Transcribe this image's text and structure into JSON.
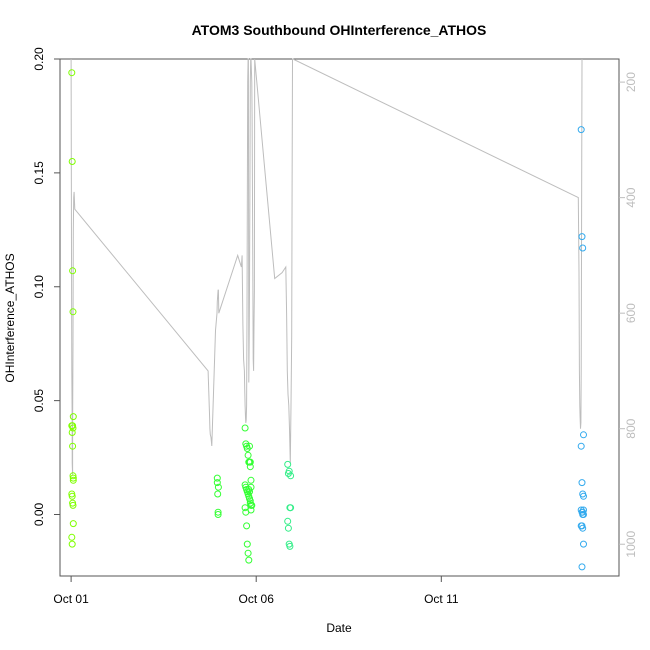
{
  "chart_data": {
    "type": "scatter",
    "title": "ATOM3 Southbound OHInterference_ATHOS",
    "xlabel": "Date",
    "ylabel": "OHInterference_ATHOS",
    "x_ticks": [
      {
        "label": "Oct 01",
        "value": 0
      },
      {
        "label": "Oct 06",
        "value": 5
      },
      {
        "label": "Oct 11",
        "value": 10
      }
    ],
    "xlim": [
      -0.3,
      14.8
    ],
    "ylim": [
      -0.027,
      0.2
    ],
    "y_ticks": [
      "0.00",
      "0.05",
      "0.10",
      "0.15",
      "0.20"
    ],
    "y2_ticks": [
      "200",
      "400",
      "600",
      "800",
      "1000"
    ],
    "y2lim": [
      160,
      1055
    ],
    "y2_direction": "reversed",
    "grid": false,
    "colors": {
      "axis": "#555555",
      "line": "#bdbdbd",
      "y2_text": "#bdbdbd"
    },
    "series": [
      {
        "color": "#7fff00",
        "x": [
          0.02,
          0.03,
          0.04,
          0.05,
          0.06,
          0.02,
          0.03,
          0.04,
          0.05,
          0.06,
          0.02,
          0.03,
          0.04,
          0.05,
          0.06,
          0.02,
          0.03,
          0.04,
          0.05,
          0.06
        ],
        "y": [
          0.194,
          0.155,
          0.107,
          0.089,
          0.043,
          0.039,
          0.036,
          0.03,
          0.017,
          0.015,
          0.009,
          0.008,
          0.005,
          0.004,
          -0.004,
          -0.01,
          -0.013,
          0.039,
          0.038,
          0.016
        ]
      },
      {
        "color": "#33ff33",
        "x": [
          3.95,
          3.95,
          3.96,
          3.97,
          3.97,
          3.98,
          4.7,
          4.72,
          4.74,
          4.76,
          4.78,
          4.8,
          4.82,
          4.84,
          4.86,
          4.7,
          4.72,
          4.74,
          4.76,
          4.78,
          4.8,
          4.82,
          4.84,
          4.86,
          4.7,
          4.72,
          4.74,
          4.76,
          4.78,
          4.8,
          4.82,
          4.84,
          4.86,
          4.8,
          4.82,
          4.84,
          4.86,
          4.88
        ],
        "y": [
          0.016,
          0.014,
          0.009,
          0.001,
          0.0,
          0.012,
          0.038,
          0.031,
          0.03,
          0.029,
          0.026,
          0.023,
          0.023,
          0.021,
          0.015,
          0.013,
          0.012,
          0.011,
          0.01,
          0.009,
          0.008,
          0.007,
          0.005,
          0.004,
          0.003,
          0.001,
          -0.005,
          -0.013,
          -0.017,
          -0.02,
          0.03,
          0.023,
          0.012,
          0.011,
          0.01,
          0.006,
          0.002,
          0.004
        ]
      },
      {
        "color": "#33ee88",
        "x": [
          5.85,
          5.87,
          5.89,
          5.91,
          5.93,
          5.85,
          5.87,
          5.89,
          5.91,
          5.93
        ],
        "y": [
          0.022,
          0.018,
          0.019,
          0.003,
          0.003,
          -0.003,
          -0.006,
          -0.013,
          -0.014,
          0.017
        ]
      },
      {
        "color": "#33aaee",
        "x": [
          13.78,
          13.8,
          13.82,
          13.84,
          13.78,
          13.8,
          13.82,
          13.84,
          13.78,
          13.8,
          13.82,
          13.84,
          13.78,
          13.8,
          13.82,
          13.84,
          13.8,
          13.82,
          13.84
        ],
        "y": [
          0.169,
          0.122,
          0.117,
          0.035,
          0.03,
          0.014,
          0.009,
          0.008,
          0.002,
          0.001,
          0.0,
          0.002,
          -0.005,
          -0.005,
          -0.006,
          -0.013,
          -0.023,
          0.001,
          0.0
        ]
      }
    ],
    "altitude_line": {
      "name": "",
      "color": "#bdbdbd",
      "x": [
        0.0,
        0.01,
        0.02,
        0.03,
        0.03,
        0.04,
        0.04,
        0.05,
        0.06,
        0.07,
        0.08,
        0.1,
        3.7,
        3.74,
        3.75,
        3.76,
        3.78,
        3.8,
        3.9,
        3.94,
        3.95,
        3.96,
        3.97,
        3.98,
        3.99,
        4.5,
        4.55,
        4.6,
        4.62,
        4.64,
        4.66,
        4.68,
        4.69,
        4.7,
        4.71,
        4.72,
        4.73,
        4.74,
        4.75,
        4.76,
        4.77,
        4.78,
        4.79,
        4.8,
        4.81,
        4.82,
        4.83,
        4.84,
        4.85,
        4.86,
        4.87,
        4.88,
        4.89,
        4.9,
        4.91,
        4.92,
        4.93,
        4.94,
        4.95,
        4.96,
        5.5,
        5.7,
        5.8,
        5.82,
        5.84,
        5.86,
        5.88,
        5.9,
        5.92,
        5.94,
        5.96,
        5.97,
        5.98,
        5.99,
        13.7,
        13.72,
        13.73,
        13.74,
        13.75,
        13.76,
        13.77,
        13.78,
        13.8
      ],
      "y": [
        160,
        500,
        700,
        790,
        860,
        880,
        800,
        650,
        460,
        400,
        390,
        420,
        700,
        780,
        800,
        810,
        815,
        830,
        630,
        600,
        580,
        570,
        560,
        560,
        600,
        500,
        510,
        520,
        500,
        620,
        680,
        700,
        730,
        760,
        780,
        790,
        785,
        760,
        600,
        420,
        200,
        160,
        160,
        720,
        640,
        560,
        400,
        200,
        160,
        160,
        180,
        200,
        260,
        400,
        560,
        680,
        700,
        620,
        560,
        160,
        540,
        530,
        520,
        600,
        700,
        740,
        760,
        800,
        860,
        760,
        640,
        380,
        160,
        150,
        400,
        530,
        700,
        760,
        780,
        800,
        790,
        700,
        160
      ]
    }
  }
}
